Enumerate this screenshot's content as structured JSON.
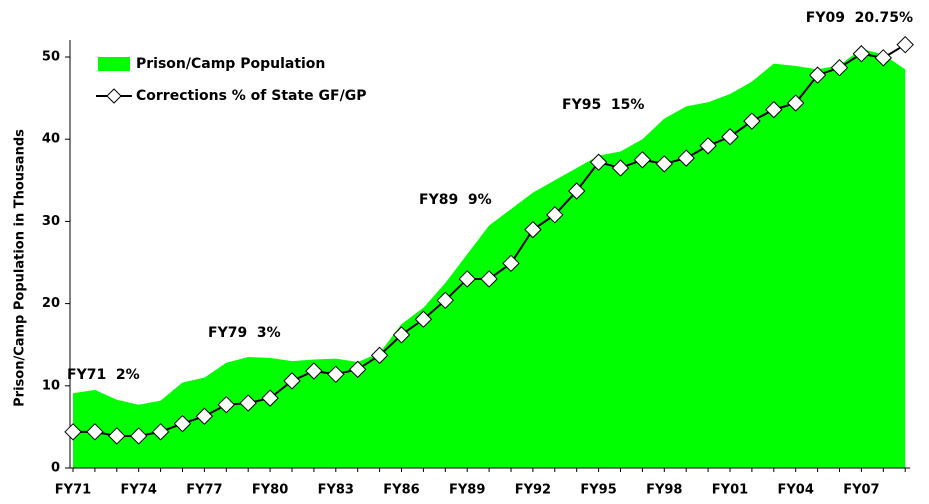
{
  "chart_data": {
    "type": "area-line",
    "y_axis_label": "Prison/Camp Population in Thousands",
    "categories": [
      "FY71",
      null,
      null,
      "FY74",
      null,
      null,
      "FY77",
      null,
      null,
      "FY80",
      null,
      null,
      "FY83",
      null,
      null,
      "FY86",
      null,
      null,
      "FY89",
      null,
      null,
      "FY92",
      null,
      null,
      "FY95",
      null,
      null,
      "FY98",
      null,
      null,
      "FY01",
      null,
      null,
      "FY04",
      null,
      null,
      "FY07",
      null,
      null
    ],
    "series": [
      {
        "name": "Prison/Camp Population",
        "color": "#00ff00",
        "kind": "area",
        "values": [
          9.1,
          9.5,
          8.3,
          7.7,
          8.2,
          10.4,
          11.0,
          12.8,
          13.5,
          13.4,
          13.0,
          13.2,
          13.3,
          12.9,
          14.0,
          17.5,
          19.5,
          22.5,
          26.0,
          29.5,
          31.5,
          33.5,
          35.0,
          36.5,
          38.0,
          38.5,
          40.0,
          42.5,
          44.0,
          44.5,
          45.5,
          47.0,
          49.2,
          48.9,
          48.5,
          49.0,
          51.0,
          50.3,
          48.5
        ]
      },
      {
        "name": "Corrections % of State GF/GP",
        "color": "#000000",
        "kind": "line",
        "values": [
          4.4,
          4.4,
          3.9,
          3.9,
          4.4,
          5.4,
          6.3,
          7.7,
          7.9,
          8.5,
          10.6,
          11.8,
          11.4,
          12.0,
          13.7,
          16.2,
          18.1,
          20.4,
          23.0,
          23.0,
          24.9,
          29.0,
          30.8,
          33.7,
          37.2,
          36.5,
          37.5,
          37.0,
          37.7,
          39.2,
          40.3,
          42.2,
          43.6,
          44.4,
          47.8,
          48.7,
          50.4,
          49.9,
          51.5
        ]
      }
    ],
    "annotations": [
      "FY71  2%",
      "FY79  3%",
      "FY89  9%",
      "FY95  15%",
      "FY09  20.75%"
    ],
    "ylim": [
      0,
      50
    ],
    "yticks": [
      0,
      10,
      20,
      30,
      40,
      50
    ],
    "legend": "upper left"
  }
}
